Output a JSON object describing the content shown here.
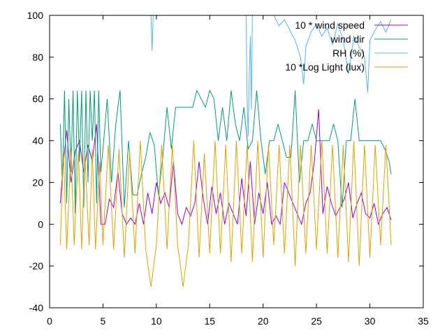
{
  "chart_data": {
    "type": "line",
    "xlim": [
      0,
      35
    ],
    "ylim": [
      -40,
      100
    ],
    "x_ticks": [
      0,
      5,
      10,
      15,
      20,
      25,
      30,
      35
    ],
    "y_ticks": [
      -40,
      -20,
      0,
      20,
      40,
      60,
      80,
      100
    ],
    "x_tick_labels": [
      "0",
      "5",
      "10",
      "15",
      "20",
      "25",
      "30",
      "35"
    ],
    "y_tick_labels": [
      "-40",
      "-20",
      "0",
      "20",
      "40",
      "60",
      "80",
      "100"
    ],
    "grid": false,
    "legend_position": "top-right",
    "series": [
      {
        "name": "10 * wind speed",
        "color": "#9400d3",
        "x": [
          1.0,
          1.3,
          1.6,
          2.0,
          2.4,
          2.8,
          3.2,
          3.6,
          4.0,
          4.4,
          4.8,
          5.2,
          5.6,
          6.0,
          6.4,
          6.8,
          7.2,
          7.6,
          8.0,
          8.4,
          8.8,
          9.2,
          9.6,
          10.0,
          10.4,
          10.8,
          11.2,
          11.6,
          12.0,
          12.4,
          12.8,
          13.2,
          13.6,
          14.0,
          14.4,
          14.8,
          15.2,
          15.6,
          16.0,
          16.4,
          16.8,
          17.2,
          17.6,
          18.0,
          18.4,
          18.8,
          19.2,
          19.6,
          20.0,
          20.4,
          20.8,
          21.2,
          21.6,
          22.0,
          22.4,
          22.8,
          23.2,
          23.6,
          24.0,
          24.4,
          24.8,
          25.2,
          25.6,
          26.0,
          26.4,
          26.8,
          27.2,
          27.6,
          28.0,
          28.4,
          28.8,
          29.2,
          29.6,
          30.0,
          30.4,
          30.8,
          31.2,
          31.6,
          32.0
        ],
        "y": [
          10,
          30,
          45,
          20,
          35,
          40,
          25,
          38,
          30,
          48,
          0,
          0,
          12,
          8,
          25,
          5,
          0,
          3,
          0,
          10,
          0,
          15,
          5,
          20,
          10,
          15,
          8,
          30,
          5,
          0,
          8,
          4,
          10,
          30,
          12,
          0,
          18,
          5,
          15,
          0,
          10,
          5,
          0,
          22,
          4,
          30,
          0,
          15,
          5,
          20,
          0,
          4,
          0,
          20,
          15,
          10,
          5,
          0,
          10,
          15,
          30,
          55,
          5,
          18,
          10,
          4,
          8,
          12,
          20,
          3,
          10,
          15,
          5,
          3,
          10,
          0,
          5,
          8,
          2
        ]
      },
      {
        "name": "wind dir",
        "color": "#009e73",
        "x": [
          1.0,
          1.2,
          1.4,
          1.6,
          1.8,
          2.0,
          2.2,
          2.4,
          2.6,
          2.8,
          3.0,
          3.2,
          3.4,
          3.6,
          3.8,
          4.0,
          4.2,
          4.4,
          4.6,
          4.8,
          5.0,
          5.4,
          5.8,
          6.2,
          6.6,
          7.0,
          7.4,
          7.8,
          8.2,
          8.6,
          9.0,
          9.4,
          9.8,
          10.2,
          10.6,
          11.0,
          11.4,
          11.8,
          12.2,
          12.6,
          13.0,
          13.4,
          13.8,
          14.2,
          14.6,
          15.0,
          15.4,
          15.8,
          16.2,
          16.6,
          17.0,
          17.4,
          17.8,
          18.2,
          18.6,
          19.0,
          19.4,
          19.8,
          20.2,
          20.6,
          21.0,
          21.4,
          21.8,
          22.2,
          22.6,
          23.0,
          23.4,
          23.8,
          24.2,
          24.6,
          25.0,
          25.4,
          25.8,
          26.2,
          26.6,
          27.0,
          27.4,
          27.8,
          28.2,
          28.6,
          29.0,
          29.4,
          29.8,
          30.2,
          30.6,
          31.0,
          31.4,
          31.8,
          32.0
        ],
        "y": [
          48,
          20,
          64,
          10,
          60,
          25,
          64,
          5,
          64,
          30,
          64,
          8,
          64,
          20,
          64,
          40,
          64,
          10,
          64,
          25,
          36,
          60,
          20,
          48,
          64,
          8,
          40,
          14,
          14,
          24,
          32,
          44,
          38,
          14,
          32,
          56,
          36,
          56,
          56,
          56,
          56,
          56,
          64,
          60,
          56,
          64,
          60,
          40,
          56,
          40,
          64,
          48,
          40,
          56,
          36,
          40,
          64,
          40,
          24,
          40,
          40,
          48,
          40,
          32,
          32,
          64,
          20,
          40,
          40,
          48,
          40,
          40,
          40,
          40,
          48,
          40,
          8,
          40,
          40,
          60,
          40,
          40,
          40,
          40,
          40,
          40,
          36,
          30,
          24
        ]
      },
      {
        "name": "RH (%)",
        "color": "#56b4e9",
        "x": [
          9.5,
          9.6,
          9.7,
          9.8,
          18.4,
          18.5,
          18.6,
          18.7,
          18.8,
          18.9,
          19.0,
          21.0,
          21.5,
          22.0,
          22.5,
          23.0,
          23.5,
          23.8,
          24.0,
          24.5,
          25.0,
          25.5,
          26.0,
          26.5,
          27.0,
          27.5,
          28.0,
          28.5,
          29.0,
          29.5,
          29.8,
          30.0,
          30.5,
          31.0,
          31.5,
          32.0
        ],
        "y": [
          100,
          83,
          100,
          100,
          100,
          60,
          42,
          70,
          90,
          55,
          100,
          100,
          95,
          98,
          93,
          88,
          80,
          67,
          85,
          92,
          96,
          90,
          94,
          86,
          96,
          88,
          72,
          90,
          85,
          80,
          63,
          88,
          93,
          97,
          92,
          98
        ]
      },
      {
        "name": "10 *Log Light (lux)",
        "color": "#e69f00",
        "x": [
          1.0,
          1.3,
          1.6,
          2.0,
          2.3,
          2.7,
          3.0,
          3.3,
          3.7,
          4.0,
          4.3,
          4.7,
          5.0,
          5.5,
          6.0,
          6.5,
          7.0,
          7.5,
          8.0,
          8.5,
          9.0,
          9.5,
          10.0,
          10.5,
          11.0,
          11.5,
          12.0,
          12.5,
          13.0,
          13.5,
          14.0,
          14.5,
          15.0,
          15.5,
          16.0,
          16.5,
          17.0,
          17.5,
          18.0,
          18.5,
          19.0,
          19.5,
          20.0,
          20.5,
          21.0,
          21.5,
          22.0,
          22.5,
          23.0,
          23.5,
          24.0,
          24.5,
          25.0,
          25.5,
          26.0,
          26.5,
          27.0,
          27.5,
          28.0,
          28.5,
          29.0,
          29.5,
          30.0,
          30.5,
          31.0,
          31.5,
          32.0
        ],
        "y": [
          -10,
          35,
          -12,
          36,
          -10,
          35,
          -12,
          34,
          -10,
          36,
          -12,
          30,
          -10,
          38,
          -12,
          36,
          -16,
          35,
          -14,
          40,
          -12,
          -30,
          -10,
          38,
          -12,
          38,
          -10,
          -30,
          -10,
          40,
          -16,
          34,
          -14,
          40,
          -14,
          38,
          -18,
          40,
          -14,
          38,
          -18,
          40,
          -16,
          38,
          -10,
          38,
          -14,
          38,
          -20,
          38,
          -14,
          38,
          -12,
          40,
          -14,
          38,
          -16,
          38,
          -18,
          40,
          -20,
          38,
          -16,
          38,
          -10,
          38,
          -10
        ]
      }
    ]
  }
}
